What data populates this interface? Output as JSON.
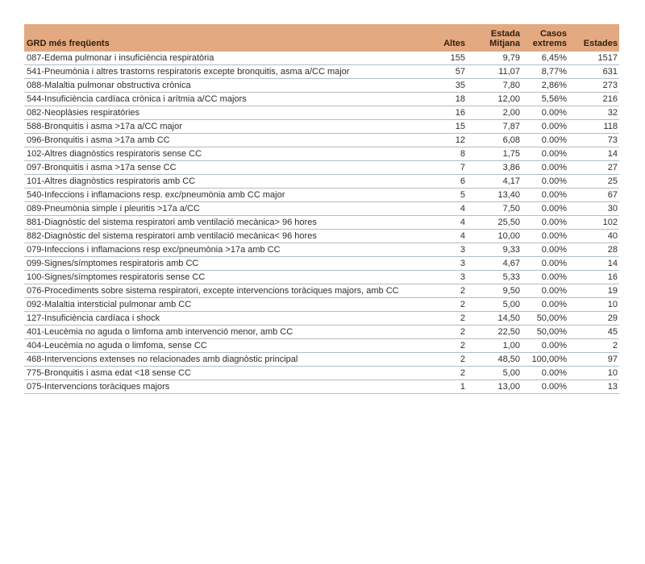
{
  "colors": {
    "page_background": "#ffffff",
    "header_background": "#e3a981",
    "header_text": "#30200e",
    "row_text": "#2e2e2e",
    "row_border": "#b2bcc6"
  },
  "table": {
    "columns": [
      {
        "key": "grd",
        "label": "GRD més freqüents"
      },
      {
        "key": "altes",
        "label": "Altes"
      },
      {
        "key": "estada_mitjana",
        "label": "Estada\nMitjana"
      },
      {
        "key": "casos_extrems",
        "label": "Casos\nextrems"
      },
      {
        "key": "estades",
        "label": "Estades"
      }
    ],
    "rows": [
      {
        "grd": "087-Edema pulmonar i insuficiència respiratòria",
        "altes": "155",
        "estada_mitjana": "9,79",
        "casos_extrems": "6,45%",
        "estades": "1517"
      },
      {
        "grd": "541-Pneumònia i altres trastorns respiratoris excepte bronquitis, asma a/CC major",
        "altes": "57",
        "estada_mitjana": "11,07",
        "casos_extrems": "8,77%",
        "estades": "631"
      },
      {
        "grd": "088-Malaltia pulmonar obstructiva crònica",
        "altes": "35",
        "estada_mitjana": "7,80",
        "casos_extrems": "2,86%",
        "estades": "273"
      },
      {
        "grd": "544-Insuficiència cardíaca crònica i arítmia a/CC majors",
        "altes": "18",
        "estada_mitjana": "12,00",
        "casos_extrems": "5,56%",
        "estades": "216"
      },
      {
        "grd": "082-Neoplàsies respiratòries",
        "altes": "16",
        "estada_mitjana": "2,00",
        "casos_extrems": "0.00%",
        "estades": "32"
      },
      {
        "grd": "588-Bronquitis i asma >17a a/CC major",
        "altes": "15",
        "estada_mitjana": "7,87",
        "casos_extrems": "0.00%",
        "estades": "118"
      },
      {
        "grd": "096-Bronquitis i asma >17a amb CC",
        "altes": "12",
        "estada_mitjana": "6,08",
        "casos_extrems": "0.00%",
        "estades": "73"
      },
      {
        "grd": "102-Altres diagnòstics respiratoris sense CC",
        "altes": "8",
        "estada_mitjana": "1,75",
        "casos_extrems": "0.00%",
        "estades": "14"
      },
      {
        "grd": "097-Bronquitis i asma >17a sense CC",
        "altes": "7",
        "estada_mitjana": "3,86",
        "casos_extrems": "0.00%",
        "estades": "27"
      },
      {
        "grd": "101-Altres diagnòstics respiratoris amb CC",
        "altes": "6",
        "estada_mitjana": "4,17",
        "casos_extrems": "0.00%",
        "estades": "25"
      },
      {
        "grd": "540-Infeccions i inflamacions resp. exc/pneumònia amb CC major",
        "altes": "5",
        "estada_mitjana": "13,40",
        "casos_extrems": "0.00%",
        "estades": "67"
      },
      {
        "grd": "089-Pneumònia simple i pleuritis  >17a a/CC",
        "altes": "4",
        "estada_mitjana": "7,50",
        "casos_extrems": "0.00%",
        "estades": "30"
      },
      {
        "grd": "881-Diagnòstic del sistema respiratori amb ventilació mecànica> 96 hores",
        "altes": "4",
        "estada_mitjana": "25,50",
        "casos_extrems": "0.00%",
        "estades": "102"
      },
      {
        "grd": "882-Diagnòstic del sistema respiratori amb ventilació mecànica< 96 hores",
        "altes": "4",
        "estada_mitjana": "10,00",
        "casos_extrems": "0.00%",
        "estades": "40"
      },
      {
        "grd": "079-Infeccions i inflamacions resp exc/pneumònia  >17a amb CC",
        "altes": "3",
        "estada_mitjana": "9,33",
        "casos_extrems": "0.00%",
        "estades": "28"
      },
      {
        "grd": "099-Signes/símptomes respiratoris amb CC",
        "altes": "3",
        "estada_mitjana": "4,67",
        "casos_extrems": "0.00%",
        "estades": "14"
      },
      {
        "grd": "100-Signes/símptomes respiratoris sense CC",
        "altes": "3",
        "estada_mitjana": "5,33",
        "casos_extrems": "0.00%",
        "estades": "16"
      },
      {
        "grd": "076-Procediments sobre sistema respiratori, excepte intervencions toràciques majors, amb CC",
        "altes": "2",
        "estada_mitjana": "9,50",
        "casos_extrems": "0.00%",
        "estades": "19"
      },
      {
        "grd": "092-Malaltia intersticial pulmonar amb CC",
        "altes": "2",
        "estada_mitjana": "5,00",
        "casos_extrems": "0.00%",
        "estades": "10"
      },
      {
        "grd": "127-Insuficiència cardíaca i shock",
        "altes": "2",
        "estada_mitjana": "14,50",
        "casos_extrems": "50,00%",
        "estades": "29"
      },
      {
        "grd": "401-Leucèmia no aguda o limfoma amb intervenció menor, amb CC",
        "altes": "2",
        "estada_mitjana": "22,50",
        "casos_extrems": "50,00%",
        "estades": "45"
      },
      {
        "grd": "404-Leucèmia no aguda o limfoma, sense CC",
        "altes": "2",
        "estada_mitjana": "1,00",
        "casos_extrems": "0.00%",
        "estades": "2"
      },
      {
        "grd": "468-Intervencions extenses no relacionades amb diagnòstic principal",
        "altes": "2",
        "estada_mitjana": "48,50",
        "casos_extrems": "100,00%",
        "estades": "97"
      },
      {
        "grd": "775-Bronquitis i asma edat <18 sense CC",
        "altes": "2",
        "estada_mitjana": "5,00",
        "casos_extrems": "0.00%",
        "estades": "10"
      },
      {
        "grd": "075-Intervencions toràciques majors",
        "altes": "1",
        "estada_mitjana": "13,00",
        "casos_extrems": "0.00%",
        "estades": "13"
      }
    ]
  }
}
